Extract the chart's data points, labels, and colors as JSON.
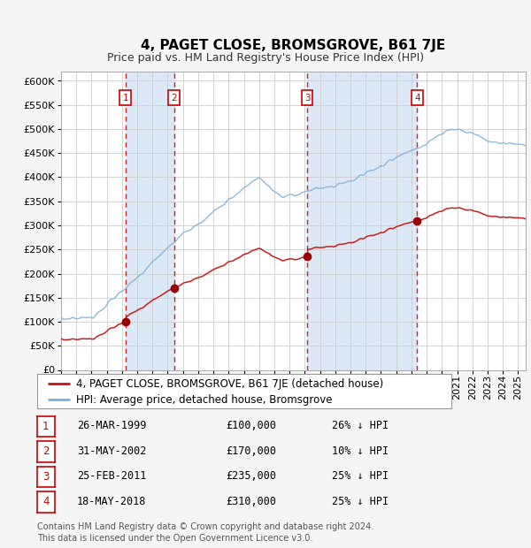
{
  "title": "4, PAGET CLOSE, BROMSGROVE, B61 7JE",
  "subtitle": "Price paid vs. HM Land Registry's House Price Index (HPI)",
  "ytick_values": [
    0,
    50000,
    100000,
    150000,
    200000,
    250000,
    300000,
    350000,
    400000,
    450000,
    500000,
    550000,
    600000
  ],
  "ylim": [
    0,
    620000
  ],
  "xlim_start": 1995.0,
  "xlim_end": 2025.5,
  "transactions": [
    {
      "num": 1,
      "date": "26-MAR-1999",
      "price": 100000,
      "year": 1999.23,
      "pct": "26%",
      "dir": "↓"
    },
    {
      "num": 2,
      "date": "31-MAY-2002",
      "price": 170000,
      "year": 2002.42,
      "pct": "10%",
      "dir": "↓"
    },
    {
      "num": 3,
      "date": "25-FEB-2011",
      "price": 235000,
      "year": 2011.15,
      "pct": "25%",
      "dir": "↓"
    },
    {
      "num": 4,
      "date": "18-MAY-2018",
      "price": 310000,
      "year": 2018.38,
      "pct": "25%",
      "dir": "↓"
    }
  ],
  "bg_color": "#f5f5f5",
  "plot_bg": "#ffffff",
  "hpi_color": "#7aadd4",
  "price_color": "#cc1111",
  "dashed_color": "#cc2222",
  "marker_color": "#990000",
  "shade_color": "#dce8f5",
  "grid_color": "#cccccc",
  "legend_label_price": "4, PAGET CLOSE, BROMSGROVE, B61 7JE (detached house)",
  "legend_label_hpi": "HPI: Average price, detached house, Bromsgrove",
  "footnote": "Contains HM Land Registry data © Crown copyright and database right 2024.\nThis data is licensed under the Open Government Licence v3.0.",
  "title_fontsize": 11,
  "subtitle_fontsize": 9,
  "tick_fontsize": 8,
  "legend_fontsize": 8.5,
  "table_fontsize": 8.5
}
